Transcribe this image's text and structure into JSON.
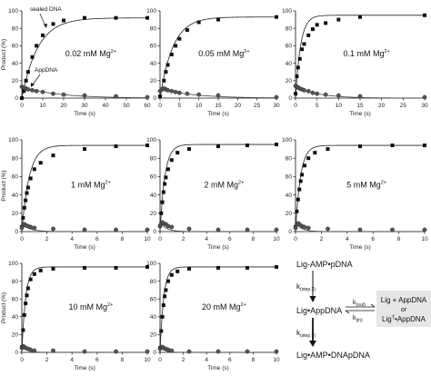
{
  "chart_data": [
    {
      "type": "scatter",
      "condition": "0.02 mM Mg",
      "condition_sup": "2+",
      "xlabel": "Time (s)",
      "ylabel": "Product (%)",
      "xlim": [
        0,
        60
      ],
      "ylim": [
        0,
        100
      ],
      "xticks": [
        0,
        10,
        20,
        30,
        40,
        50,
        60
      ],
      "yticks": [
        0,
        20,
        40,
        60,
        80,
        100
      ],
      "annotations": [
        {
          "text": "sealed DNA"
        },
        {
          "text": "AppDNA"
        }
      ],
      "series": [
        {
          "marker": "square",
          "color": "#111111",
          "x": [
            0,
            1,
            2,
            3,
            5,
            7,
            10,
            15,
            20,
            30,
            45,
            60
          ],
          "y": [
            0,
            8,
            20,
            30,
            47,
            60,
            72,
            85,
            89,
            92,
            92,
            92
          ]
        },
        {
          "marker": "circle",
          "color": "#555555",
          "x": [
            0,
            1,
            2,
            3,
            5,
            7,
            10,
            15,
            20,
            30,
            45,
            60
          ],
          "y": [
            13,
            12,
            11,
            10,
            9,
            8,
            7,
            5,
            4,
            3,
            2,
            1
          ]
        }
      ],
      "fits": [
        {
          "asymptote": 92,
          "k": 0.13,
          "shape": "exponential"
        },
        {
          "peak": 13,
          "k": 0.06,
          "shape": "decay"
        }
      ]
    },
    {
      "type": "scatter",
      "condition": "0.05 mM Mg",
      "condition_sup": "2+",
      "xlabel": "Time (s)",
      "ylabel": "",
      "xlim": [
        0,
        30
      ],
      "ylim": [
        0,
        100
      ],
      "xticks": [
        0,
        5,
        10,
        15,
        20,
        25,
        30
      ],
      "yticks": [
        0,
        20,
        40,
        60,
        80,
        100
      ],
      "series": [
        {
          "marker": "square",
          "color": "#111111",
          "x": [
            0,
            0.5,
            1,
            1.5,
            2,
            3,
            4,
            5,
            7,
            10,
            15,
            30
          ],
          "y": [
            2,
            10,
            20,
            30,
            38,
            50,
            60,
            68,
            78,
            87,
            90,
            93
          ]
        },
        {
          "marker": "circle",
          "color": "#555555",
          "x": [
            0,
            0.5,
            1,
            1.5,
            2,
            3,
            4,
            5,
            7,
            10,
            15,
            30
          ],
          "y": [
            8,
            10,
            11,
            10,
            9,
            8,
            7,
            6,
            5,
            4,
            3,
            1
          ]
        }
      ],
      "fits": [
        {
          "asymptote": 93,
          "k": 0.3,
          "shape": "exponential"
        },
        {
          "peak": 11,
          "k": 0.12,
          "shape": "decay"
        }
      ]
    },
    {
      "type": "scatter",
      "condition": "0.1 mM Mg",
      "condition_sup": "2+",
      "xlabel": "Time (s)",
      "ylabel": "",
      "xlim": [
        0,
        30
      ],
      "ylim": [
        0,
        100
      ],
      "xticks": [
        0,
        5,
        10,
        15,
        20,
        25,
        30
      ],
      "yticks": [
        0,
        20,
        40,
        60,
        80,
        100
      ],
      "series": [
        {
          "marker": "square",
          "color": "#111111",
          "x": [
            0,
            0.3,
            0.6,
            1,
            1.5,
            2,
            3,
            4,
            5,
            7,
            10,
            15,
            30
          ],
          "y": [
            5,
            25,
            35,
            45,
            56,
            62,
            72,
            79,
            84,
            86,
            90,
            93,
            95
          ]
        },
        {
          "marker": "circle",
          "color": "#555555",
          "x": [
            0,
            0.3,
            0.6,
            1,
            1.5,
            2,
            3,
            4,
            5,
            7,
            10,
            15,
            30
          ],
          "y": [
            14,
            13,
            12,
            11,
            10,
            9,
            8,
            6,
            5,
            4,
            3,
            2,
            1
          ]
        }
      ],
      "fits": [
        {
          "asymptote": 95,
          "k": 0.85,
          "shape": "exponential"
        },
        {
          "peak": 14,
          "k": 0.2,
          "shape": "decay"
        }
      ]
    },
    {
      "type": "scatter",
      "condition": "1 mM Mg",
      "condition_sup": "2+",
      "xlabel": "Time (s)",
      "ylabel": "Product (%)",
      "xlim": [
        0,
        10
      ],
      "ylim": [
        0,
        100
      ],
      "xticks": [
        0,
        2,
        4,
        6,
        8,
        10
      ],
      "yticks": [
        0,
        20,
        40,
        60,
        80,
        100
      ],
      "series": [
        {
          "marker": "square",
          "color": "#111111",
          "x": [
            0,
            0.1,
            0.2,
            0.3,
            0.4,
            0.5,
            0.7,
            1,
            1.5,
            2.5,
            5,
            7.5,
            10
          ],
          "y": [
            5,
            15,
            26,
            34,
            42,
            48,
            58,
            68,
            75,
            83,
            90,
            93,
            94
          ]
        },
        {
          "marker": "circle",
          "color": "#555555",
          "x": [
            0,
            0.1,
            0.2,
            0.3,
            0.5,
            0.7,
            1,
            2.5,
            5,
            7.5,
            10
          ],
          "y": [
            4,
            7,
            8,
            7,
            6,
            5,
            4,
            3,
            2,
            2,
            2
          ]
        }
      ],
      "fits": [
        {
          "asymptote": 94,
          "k": 1.7,
          "shape": "exponential"
        },
        {
          "peak": 8,
          "k": 1.5,
          "shape": "decay"
        }
      ]
    },
    {
      "type": "scatter",
      "condition": "2 mM Mg",
      "condition_sup": "2+",
      "xlabel": "Time (s)",
      "ylabel": "",
      "xlim": [
        0,
        10
      ],
      "ylim": [
        0,
        100
      ],
      "xticks": [
        0,
        2,
        4,
        6,
        8,
        10
      ],
      "yticks": [
        0,
        20,
        40,
        60,
        80,
        100
      ],
      "series": [
        {
          "marker": "square",
          "color": "#111111",
          "x": [
            0,
            0.1,
            0.2,
            0.3,
            0.4,
            0.5,
            0.7,
            1,
            1.5,
            2.5,
            5,
            7.5,
            10
          ],
          "y": [
            6,
            20,
            32,
            43,
            52,
            59,
            68,
            78,
            86,
            90,
            93,
            94,
            95
          ]
        },
        {
          "marker": "circle",
          "color": "#555555",
          "x": [
            0,
            0.1,
            0.2,
            0.3,
            0.5,
            0.7,
            1,
            2.5,
            5,
            7.5,
            10
          ],
          "y": [
            6,
            9,
            10,
            9,
            8,
            6,
            5,
            3,
            2,
            2,
            2
          ]
        }
      ],
      "fits": [
        {
          "asymptote": 95,
          "k": 2.4,
          "shape": "exponential"
        },
        {
          "peak": 10,
          "k": 1.8,
          "shape": "decay"
        }
      ]
    },
    {
      "type": "scatter",
      "condition": "5 mM Mg",
      "condition_sup": "2+",
      "xlabel": "Time (s)",
      "ylabel": "",
      "xlim": [
        0,
        10
      ],
      "ylim": [
        0,
        100
      ],
      "xticks": [
        0,
        2,
        4,
        6,
        8,
        10
      ],
      "yticks": [
        0,
        20,
        40,
        60,
        80,
        100
      ],
      "series": [
        {
          "marker": "square",
          "color": "#111111",
          "x": [
            0,
            0.1,
            0.2,
            0.3,
            0.4,
            0.5,
            0.7,
            1,
            1.5,
            2.5,
            5,
            7.5,
            10
          ],
          "y": [
            5,
            22,
            35,
            46,
            55,
            62,
            72,
            80,
            86,
            90,
            93,
            94,
            94
          ]
        },
        {
          "marker": "circle",
          "color": "#555555",
          "x": [
            0,
            0.1,
            0.2,
            0.3,
            0.5,
            0.7,
            1,
            2.5,
            5,
            7.5,
            10
          ],
          "y": [
            4,
            8,
            9,
            8,
            6,
            5,
            4,
            3,
            2,
            2,
            2
          ]
        }
      ],
      "fits": [
        {
          "asymptote": 94,
          "k": 2.6,
          "shape": "exponential"
        },
        {
          "peak": 9,
          "k": 2,
          "shape": "decay"
        }
      ]
    },
    {
      "type": "scatter",
      "condition": "10 mM Mg",
      "condition_sup": "2+",
      "xlabel": "Time (s)",
      "ylabel": "Product (%)",
      "xlim": [
        0,
        10
      ],
      "ylim": [
        0,
        100
      ],
      "xticks": [
        0,
        2,
        4,
        6,
        8,
        10
      ],
      "yticks": [
        0,
        20,
        40,
        60,
        80,
        100
      ],
      "series": [
        {
          "marker": "square",
          "color": "#111111",
          "x": [
            0,
            0.1,
            0.2,
            0.3,
            0.4,
            0.5,
            0.7,
            1,
            1.5,
            2.5,
            5,
            7.5,
            10
          ],
          "y": [
            6,
            25,
            42,
            55,
            64,
            72,
            82,
            88,
            92,
            94,
            95,
            95,
            96
          ]
        },
        {
          "marker": "circle",
          "color": "#555555",
          "x": [
            0,
            0.1,
            0.2,
            0.3,
            0.5,
            0.7,
            1,
            2.5,
            5,
            7.5,
            10
          ],
          "y": [
            5,
            7,
            6,
            5,
            4,
            3,
            2,
            2,
            1,
            1,
            1
          ]
        }
      ],
      "fits": [
        {
          "asymptote": 96,
          "k": 3.3,
          "shape": "exponential"
        },
        {
          "peak": 7,
          "k": 2.5,
          "shape": "decay"
        }
      ]
    },
    {
      "type": "scatter",
      "condition": "20 mM Mg",
      "condition_sup": "2+",
      "xlabel": "Time (s)",
      "ylabel": "",
      "xlim": [
        0,
        10
      ],
      "ylim": [
        0,
        100
      ],
      "xticks": [
        0,
        2,
        4,
        6,
        8,
        10
      ],
      "yticks": [
        0,
        20,
        40,
        60,
        80,
        100
      ],
      "series": [
        {
          "marker": "square",
          "color": "#111111",
          "x": [
            0,
            0.1,
            0.2,
            0.3,
            0.4,
            0.5,
            0.7,
            1,
            1.5,
            2.5,
            5,
            7.5,
            10
          ],
          "y": [
            5,
            24,
            40,
            53,
            63,
            70,
            80,
            87,
            91,
            94,
            95,
            95,
            96
          ]
        },
        {
          "marker": "circle",
          "color": "#555555",
          "x": [
            0,
            0.1,
            0.2,
            0.3,
            0.5,
            0.7,
            1,
            2.5,
            5,
            7.5,
            10
          ],
          "y": [
            4,
            6,
            6,
            5,
            4,
            3,
            2,
            1,
            1,
            1,
            1
          ]
        }
      ],
      "fits": [
        {
          "asymptote": 96,
          "k": 3.2,
          "shape": "exponential"
        },
        {
          "peak": 6,
          "k": 2.5,
          "shape": "decay"
        }
      ]
    }
  ],
  "scheme": {
    "top": "Lig-AMP•pDNA",
    "step2_label": "k",
    "step2_sub": "(step 2)",
    "middle": "Lig•AppDNA",
    "kout_label": "k",
    "kout_sub": "(out)",
    "kin_label": "k",
    "kin_sub": "(in)",
    "box_line1": "Lig + AppDNA",
    "box_line2": "or",
    "box_line3_prefix": "Lig",
    "box_line3_dagger": "†",
    "box_line3_suffix": "•AppDNA",
    "step3_label": "k",
    "step3_sub": "(step 3)",
    "bottom": "Lig•AMP•DNApDNA",
    "box_fill": "#e6e6e6"
  }
}
